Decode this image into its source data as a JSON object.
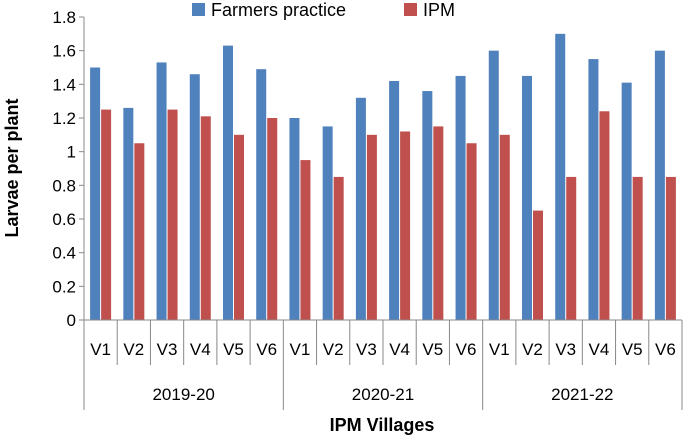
{
  "chart_data": {
    "type": "bar",
    "title": "",
    "xlabel": "IPM Villages",
    "ylabel": "Larvae per plant",
    "ylim": [
      0,
      1.8
    ],
    "yticks": [
      "0",
      "0.2",
      "0.4",
      "0.6",
      "0.8",
      "1",
      "1.2",
      "1.4",
      "1.6",
      "1.8"
    ],
    "grid": false,
    "legend_position": "top",
    "groups": [
      {
        "label": "2019-20",
        "categories": [
          "V1",
          "V2",
          "V3",
          "V4",
          "V5",
          "V6"
        ]
      },
      {
        "label": "2020-21",
        "categories": [
          "V1",
          "V2",
          "V3",
          "V4",
          "V5",
          "V6"
        ]
      },
      {
        "label": "2021-22",
        "categories": [
          "V1",
          "V2",
          "V3",
          "V4",
          "V5",
          "V6"
        ]
      }
    ],
    "series": [
      {
        "name": "Farmers practice",
        "color": "#4F81BD",
        "values": [
          1.5,
          1.26,
          1.53,
          1.46,
          1.63,
          1.49,
          1.2,
          1.15,
          1.32,
          1.42,
          1.36,
          1.45,
          1.6,
          1.45,
          1.7,
          1.55,
          1.41,
          1.6
        ]
      },
      {
        "name": "IPM",
        "color": "#C0504D",
        "values": [
          1.25,
          1.05,
          1.25,
          1.21,
          1.1,
          1.2,
          0.95,
          0.85,
          1.1,
          1.12,
          1.15,
          1.05,
          1.1,
          0.65,
          0.85,
          1.24,
          0.85,
          0.85
        ]
      }
    ]
  }
}
